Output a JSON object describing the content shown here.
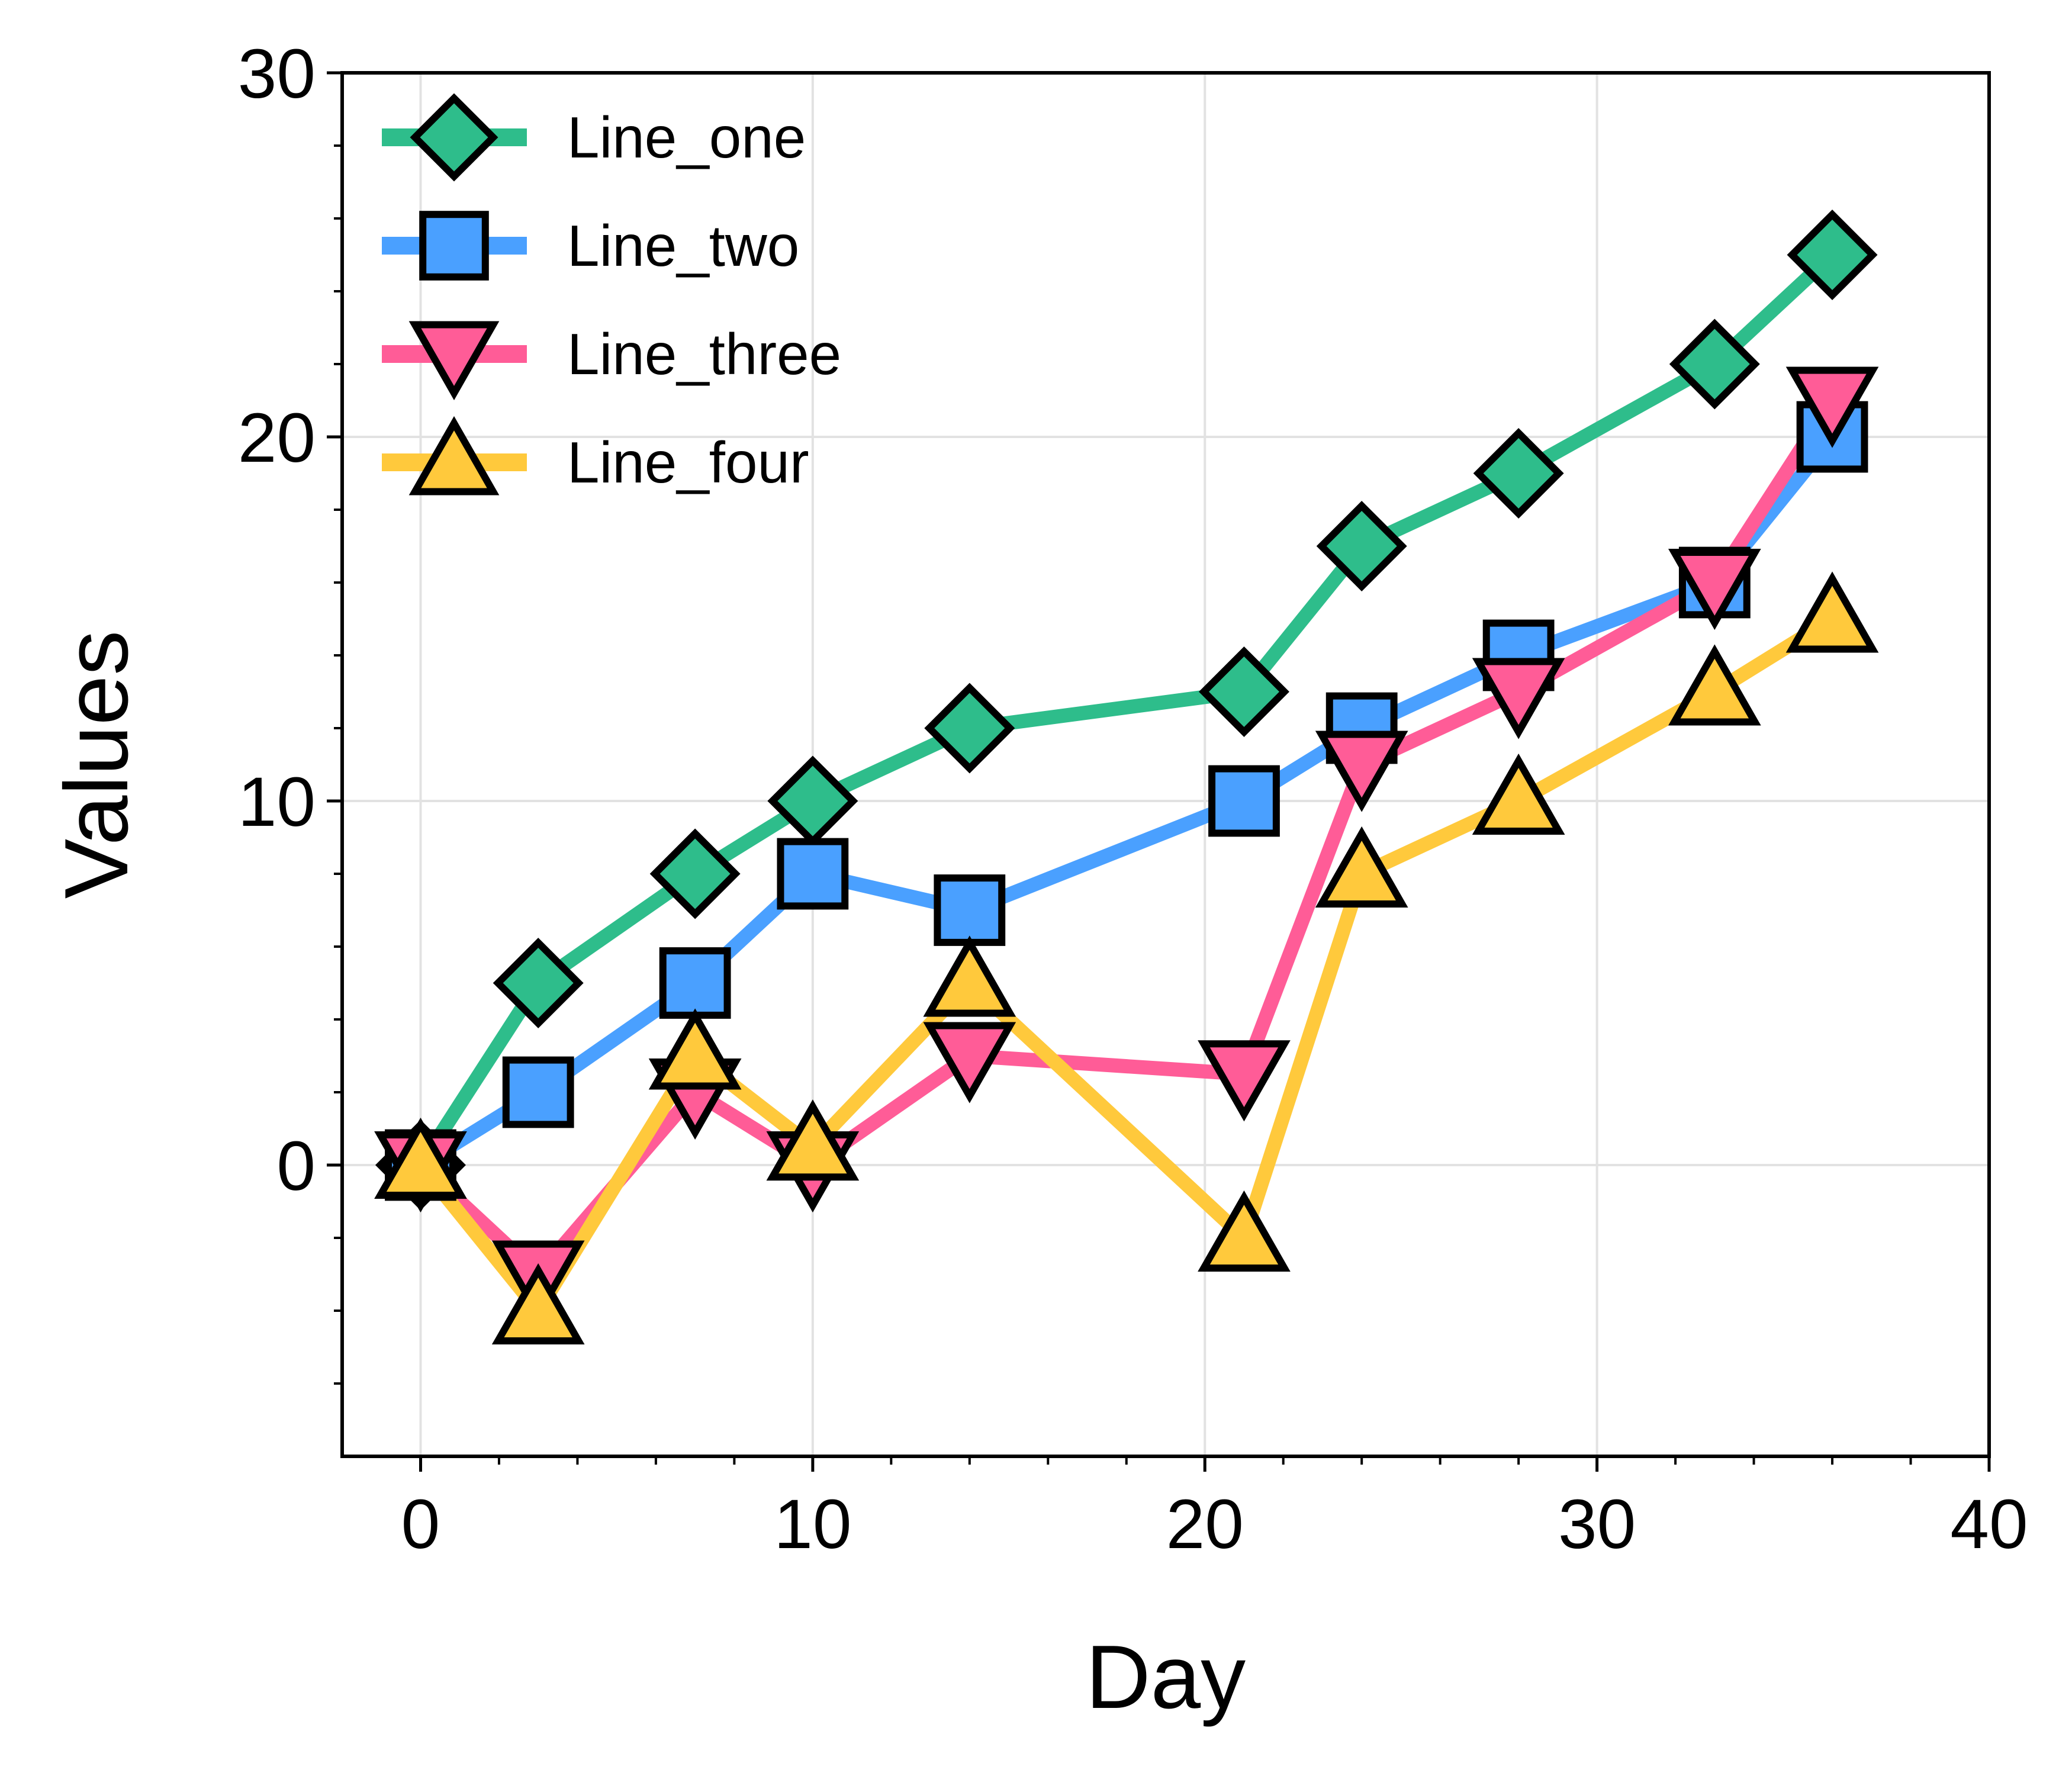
{
  "chart_data": {
    "type": "line",
    "xlabel": "Day",
    "ylabel": "Values",
    "xlim": [
      -2,
      40
    ],
    "ylim": [
      -8,
      30
    ],
    "x_ticks": [
      0,
      10,
      20,
      30,
      40
    ],
    "y_ticks": [
      0,
      10,
      20,
      30
    ],
    "grid": true,
    "legend_position": "top-left",
    "x": [
      0,
      3,
      7,
      10,
      14,
      21,
      24,
      28,
      33,
      36
    ],
    "series": [
      {
        "name": "Line_one",
        "color": "#2ebd8b",
        "marker": "diamond",
        "values": [
          0,
          5,
          8,
          10,
          12,
          13,
          17,
          19,
          22,
          25
        ]
      },
      {
        "name": "Line_two",
        "color": "#4aa0ff",
        "marker": "square",
        "values": [
          0,
          2,
          5,
          8,
          7,
          10,
          12,
          14,
          16,
          20
        ]
      },
      {
        "name": "Line_three",
        "color": "#ff5c97",
        "marker": "triangle-down",
        "values": [
          0,
          -3,
          2,
          0,
          3,
          2.5,
          11,
          13,
          16,
          21
        ]
      },
      {
        "name": "Line_four",
        "color": "#ffc93c",
        "marker": "triangle-up",
        "values": [
          0,
          -4,
          3,
          0.5,
          5,
          -2,
          8,
          10,
          13,
          15
        ]
      }
    ]
  }
}
